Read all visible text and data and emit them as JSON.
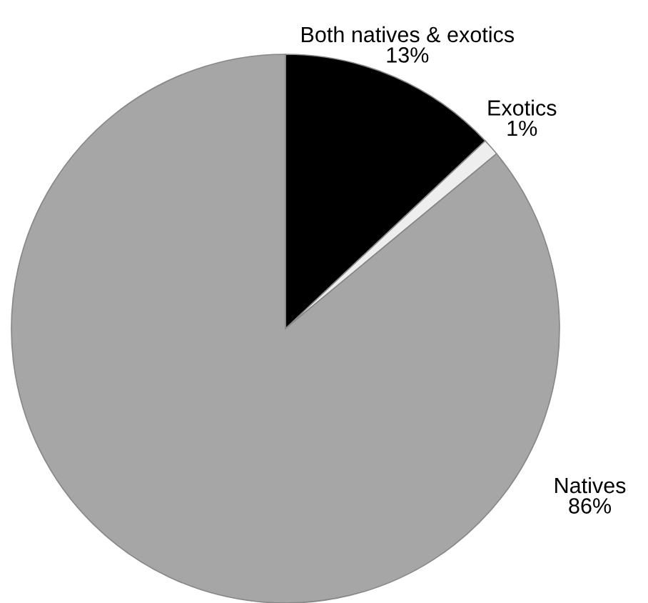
{
  "chart_data": {
    "type": "pie",
    "categories": [
      "Both natives & exotics",
      "Exotics",
      "Natives"
    ],
    "values": [
      13,
      1,
      86
    ],
    "value_labels": [
      "13%",
      "1%",
      "86%"
    ],
    "colors": [
      "#000000",
      "#eeeeee",
      "#a6a6a6"
    ]
  }
}
